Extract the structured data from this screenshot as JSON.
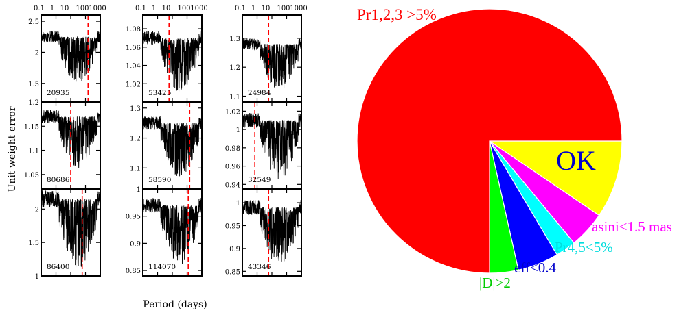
{
  "colors": {
    "frame": "#000000",
    "curve": "#000000",
    "marker": "#ff0000",
    "pie_outline": "#ffffff"
  },
  "chart_data": [
    {
      "type": "line",
      "title": "",
      "xlabel": "Period (days)",
      "ylabel": "Unit weight error",
      "x_scale": "log",
      "xlim": [
        0.1,
        1000
      ],
      "x_tick_labels": [
        "0.1",
        "1",
        "10",
        "100",
        "1000"
      ],
      "marker_color": "red dashed vertical line",
      "panels": [
        {
          "id": "20935",
          "col": 0,
          "row": 0,
          "ylim": [
            1.2,
            2.6
          ],
          "yticks": [
            1.5,
            2,
            2.5
          ],
          "ytick_labels": [
            "1.5",
            "2",
            "2.5"
          ],
          "base": 2.25,
          "trough": 1.5,
          "marker_period": 150
        },
        {
          "id": "80686",
          "col": 0,
          "row": 1,
          "ylim": [
            1.02,
            1.2
          ],
          "yticks": [
            1.05,
            1.1,
            1.15,
            1.2
          ],
          "ytick_labels": [
            "1.05",
            "1.1",
            "1.15",
            "1.2"
          ],
          "base": 1.17,
          "trough": 1.06,
          "marker_period": 10
        },
        {
          "id": "86400",
          "col": 0,
          "row": 2,
          "ylim": [
            1,
            2.3
          ],
          "yticks": [
            1,
            1.5,
            2
          ],
          "ytick_labels": [
            "1",
            "1.5",
            "2"
          ],
          "base": 2.15,
          "trough": 1.1,
          "marker_period": 60
        },
        {
          "id": "53425",
          "col": 1,
          "row": 0,
          "ylim": [
            1,
            1.095
          ],
          "yticks": [
            1.02,
            1.04,
            1.06,
            1.08
          ],
          "ytick_labels": [
            "1.02",
            "1.04",
            "1.06",
            "1.08"
          ],
          "base": 1.07,
          "trough": 1.01,
          "marker_period": 6
        },
        {
          "id": "58590",
          "col": 1,
          "row": 1,
          "ylim": [
            1.03,
            1.32
          ],
          "yticks": [
            1.1,
            1.2,
            1.3
          ],
          "ytick_labels": [
            "1.1",
            "1.2",
            "1.3"
          ],
          "base": 1.25,
          "trough": 1.07,
          "marker_period": 150
        },
        {
          "id": "114070",
          "col": 1,
          "row": 2,
          "ylim": [
            0.84,
            1
          ],
          "yticks": [
            0.85,
            0.9,
            0.95,
            1
          ],
          "ytick_labels": [
            "0.85",
            "0.9",
            "0.95",
            "1"
          ],
          "base": 0.97,
          "trough": 0.86,
          "marker_period": 120
        },
        {
          "id": "24984",
          "col": 2,
          "row": 0,
          "ylim": [
            1.08,
            1.38
          ],
          "yticks": [
            1.1,
            1.2,
            1.3
          ],
          "ytick_labels": [
            "1.1",
            "1.2",
            "1.3"
          ],
          "base": 1.28,
          "trough": 1.12,
          "marker_period": 6
        },
        {
          "id": "32549",
          "col": 2,
          "row": 1,
          "ylim": [
            0.935,
            1.03
          ],
          "yticks": [
            0.94,
            0.96,
            0.98,
            1,
            1.02
          ],
          "ytick_labels": [
            "0.94",
            "0.96",
            "0.98",
            "1",
            "1.02"
          ],
          "base": 1.01,
          "trough": 0.945,
          "marker_period": 0.7
        },
        {
          "id": "43346",
          "col": 2,
          "row": 2,
          "ylim": [
            0.84,
            1.03
          ],
          "yticks": [
            0.85,
            0.9,
            0.95,
            1
          ],
          "ytick_labels": [
            "0.85",
            "0.9",
            "0.95",
            "1"
          ],
          "base": 0.99,
          "trough": 0.86,
          "marker_period": 6
        }
      ]
    },
    {
      "type": "pie",
      "title": "",
      "slices": [
        {
          "label": "OK",
          "value": 9.5,
          "color": "#ffff00",
          "label_color": "#0000cc",
          "label_placement": "inside"
        },
        {
          "label": "asini<1.5 mas",
          "value": 4.5,
          "color": "#ff00ff",
          "label_color": "#ff00ff",
          "label_placement": "outside"
        },
        {
          "label": "Pr4,5<5%",
          "value": 2.5,
          "color": "#00ffff",
          "label_color": "#00dddd",
          "label_placement": "outside"
        },
        {
          "label": "eff<0.4",
          "value": 5.0,
          "color": "#0000ff",
          "label_color": "#0000cc",
          "label_placement": "outside"
        },
        {
          "label": "|D|>2",
          "value": 3.5,
          "color": "#00ff00",
          "label_color": "#00cc00",
          "label_placement": "outside"
        },
        {
          "label": "Pr1,2,3 >5%",
          "value": 75.0,
          "color": "#ff0000",
          "label_color": "#ff0000",
          "label_placement": "outside"
        }
      ]
    }
  ]
}
